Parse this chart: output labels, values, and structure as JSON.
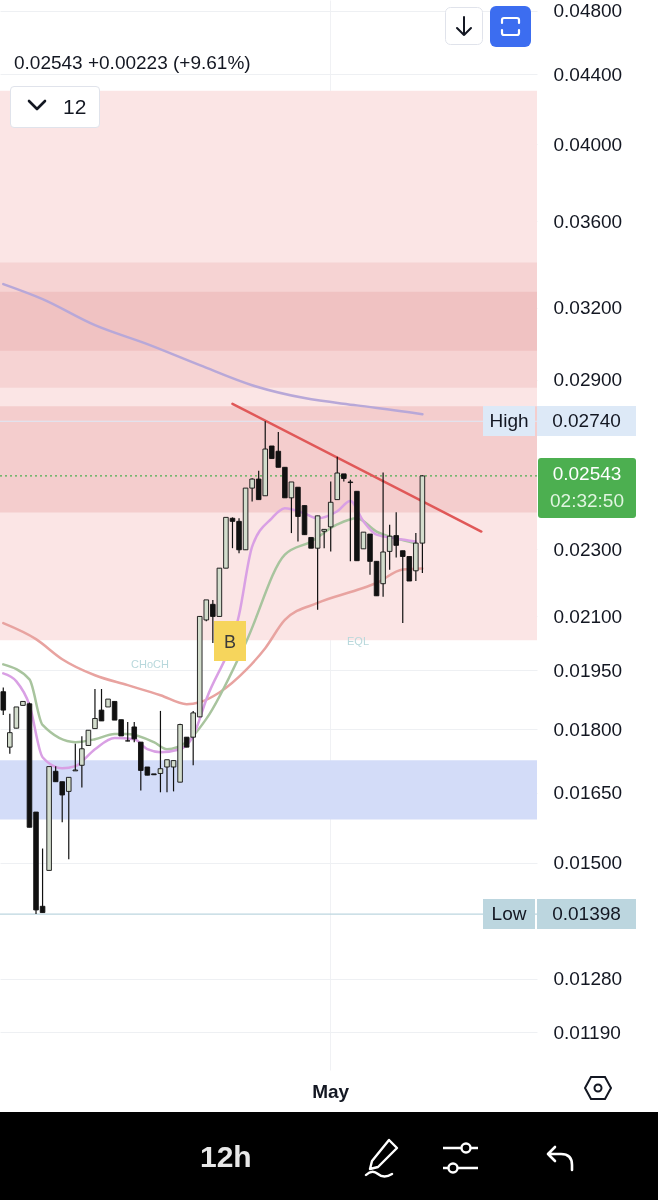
{
  "chart_data": {
    "type": "candlestick",
    "subtitle": "0.02543  +0.00223 (+9.61%)",
    "categories": [
      null,
      null,
      null,
      null,
      null,
      null,
      null,
      null,
      null,
      null,
      null,
      null,
      null,
      null,
      null,
      null,
      null,
      null,
      null,
      null,
      null,
      null,
      null,
      null,
      null,
      null,
      null,
      null,
      null,
      null,
      null,
      null,
      null,
      null,
      null,
      null,
      null,
      null,
      null,
      null,
      null,
      null,
      null,
      null,
      null,
      null,
      null,
      null,
      null,
      null,
      "May",
      null,
      null,
      null,
      null,
      null,
      null,
      null,
      null,
      null,
      null,
      null,
      null,
      null,
      null,
      null,
      null,
      null,
      null,
      null,
      null,
      null,
      null,
      null,
      null,
      null,
      null,
      null,
      null,
      null,
      null,
      null
    ],
    "ohlc": [
      [
        0.01894,
        0.01905,
        0.01835,
        0.01847
      ],
      [
        0.01756,
        0.01838,
        0.0174,
        0.01791
      ],
      [
        0.01802,
        0.01855,
        0.01802,
        0.01855
      ],
      [
        0.01859,
        0.01869,
        0.01859,
        0.01869
      ],
      [
        0.01863,
        0.01866,
        0.01574,
        0.01574
      ],
      [
        0.01607,
        0.01607,
        0.01398,
        0.01406
      ],
      [
        0.01413,
        0.01529,
        0.01401,
        0.01401
      ],
      [
        0.01484,
        0.0171,
        0.01484,
        0.0171
      ],
      [
        0.01699,
        0.01711,
        0.01675,
        0.01675
      ],
      [
        0.01675,
        0.01675,
        0.01585,
        0.01645
      ],
      [
        0.01653,
        0.01685,
        0.01507,
        0.01685
      ],
      [
        0.017,
        0.01764,
        0.017,
        0.01702
      ],
      [
        0.01713,
        0.01782,
        0.01662,
        0.01752
      ],
      [
        0.0176,
        0.01797,
        0.0176,
        0.01797
      ],
      [
        0.01801,
        0.01901,
        0.01801,
        0.01826
      ],
      [
        0.01847,
        0.01901,
        0.0182,
        0.0182
      ],
      [
        0.01855,
        0.01875,
        0.01855,
        0.01875
      ],
      [
        0.01869,
        0.01869,
        0.01822,
        0.01822
      ],
      [
        0.01823,
        0.01823,
        0.01783,
        0.01783
      ],
      [
        0.01771,
        0.01817,
        0.0177,
        0.01771
      ],
      [
        0.01805,
        0.01817,
        0.01768,
        0.01776
      ],
      [
        0.01768,
        0.01768,
        0.01655,
        0.01701
      ],
      [
        0.01709,
        0.01709,
        0.0169,
        0.0169
      ],
      [
        0.01693,
        0.01693,
        0.01691,
        0.01691
      ],
      [
        0.01694,
        0.01845,
        0.01651,
        0.01705
      ],
      [
        0.01709,
        0.01726,
        0.01651,
        0.01726
      ],
      [
        0.01709,
        0.01724,
        0.01653,
        0.01724
      ],
      [
        0.01674,
        0.01813,
        0.01674,
        0.01811
      ],
      [
        0.0178,
        0.0178,
        0.01756,
        0.01756
      ],
      [
        0.0178,
        0.01845,
        0.01713,
        0.0184
      ],
      [
        0.0183,
        0.021,
        0.0183,
        0.02099
      ],
      [
        0.02089,
        0.02147,
        0.02085,
        0.02147
      ],
      [
        0.02134,
        0.02147,
        0.02024,
        0.02099
      ],
      [
        0.02099,
        0.02242,
        0.02099,
        0.02242
      ],
      [
        0.02242,
        0.02403,
        0.02242,
        0.02403
      ],
      [
        0.024,
        0.02403,
        0.02304,
        0.0239
      ],
      [
        0.0239,
        0.024,
        0.02288,
        0.02299
      ],
      [
        0.02299,
        0.02501,
        0.02299,
        0.02501
      ],
      [
        0.02501,
        0.02535,
        0.02456,
        0.02532
      ],
      [
        0.02532,
        0.02561,
        0.02462,
        0.02462
      ],
      [
        0.02475,
        0.0274,
        0.02475,
        0.02638
      ],
      [
        0.02649,
        0.02649,
        0.02604,
        0.02604
      ],
      [
        0.0263,
        0.027,
        0.02573,
        0.02573
      ],
      [
        0.02573,
        0.02573,
        0.02468,
        0.02468
      ],
      [
        0.02468,
        0.02522,
        0.02352,
        0.02522
      ],
      [
        0.02504,
        0.02504,
        0.02325,
        0.02406
      ],
      [
        0.02442,
        0.02442,
        0.02347,
        0.02347
      ],
      [
        0.02338,
        0.02338,
        0.02304,
        0.02304
      ],
      [
        0.02304,
        0.02408,
        0.02118,
        0.02408
      ],
      [
        0.02358,
        0.02364,
        0.02304,
        0.02364
      ],
      [
        0.02372,
        0.02524,
        0.02294,
        0.02453
      ],
      [
        0.02462,
        0.0261,
        0.02462,
        0.02553
      ],
      [
        0.0255,
        0.0255,
        0.02524,
        0.02534
      ],
      [
        0.02522,
        0.0253,
        0.02263,
        0.0252
      ],
      [
        0.0249,
        0.0249,
        0.02265,
        0.02265
      ],
      [
        0.02302,
        0.02355,
        0.02302,
        0.02355
      ],
      [
        0.02349,
        0.02349,
        0.02222,
        0.02263
      ],
      [
        0.02263,
        0.02263,
        0.02159,
        0.02159
      ],
      [
        0.02195,
        0.02555,
        0.02156,
        0.02292
      ],
      [
        0.02294,
        0.02379,
        0.02237,
        0.02342
      ],
      [
        0.02344,
        0.0242,
        0.02275,
        0.02313
      ],
      [
        0.02296,
        0.02296,
        0.0208,
        0.02278
      ],
      [
        0.02278,
        0.02278,
        0.02203,
        0.02203
      ],
      [
        0.02234,
        0.02352,
        0.02203,
        0.0232
      ],
      [
        0.0232,
        0.02545,
        0.02227,
        0.02543
      ],
      null,
      null,
      null,
      null,
      null,
      null,
      null,
      null,
      null,
      null,
      null,
      null,
      null,
      null,
      null,
      null,
      null
    ],
    "series": [
      {
        "type": "line",
        "color": "#b8a8d8",
        "values": [
          0.03304,
          null,
          null,
          null,
          null,
          null,
          0.03237,
          null,
          null,
          null,
          null,
          null,
          null,
          null,
          0.03124,
          null,
          null,
          null,
          null,
          null,
          null,
          null,
          0.03044,
          null,
          null,
          null,
          null,
          null,
          null,
          null,
          0.02958,
          null,
          null,
          null,
          null,
          null,
          null,
          null,
          0.02878,
          null,
          null,
          null,
          null,
          null,
          null,
          null,
          0.02828,
          null,
          null,
          null,
          null,
          null,
          null,
          null,
          0.028,
          null,
          null,
          null,
          null,
          null,
          null,
          null,
          0.02774,
          null,
          0.02766,
          null,
          null,
          null,
          null,
          null,
          null,
          null,
          null,
          null,
          null,
          null,
          null,
          null,
          null,
          null,
          null,
          null
        ]
      },
      {
        "type": "line",
        "color": "#e8a3a0",
        "values": [
          0.0208,
          null,
          null,
          null,
          null,
          0.02035,
          null,
          null,
          null,
          0.0198,
          null,
          null,
          null,
          null,
          0.01937,
          null,
          null,
          null,
          null,
          0.01911,
          null,
          null,
          null,
          null,
          0.01885,
          null,
          null,
          null,
          0.01862,
          null,
          0.01867,
          null,
          null,
          0.01892,
          null,
          null,
          null,
          0.0195,
          null,
          null,
          0.0201,
          null,
          null,
          0.02089,
          null,
          null,
          null,
          null,
          0.02138,
          null,
          null,
          null,
          null,
          null,
          0.02176,
          null,
          null,
          0.02197,
          null,
          null,
          null,
          0.02238,
          null,
          null,
          0.02241,
          null,
          null,
          null,
          null,
          null,
          null,
          null,
          null,
          null,
          null,
          null,
          null,
          null,
          null,
          null,
          null,
          null
        ]
      },
      {
        "type": "line",
        "color": "#a8c49e",
        "values": [
          0.01966,
          null,
          null,
          null,
          0.01926,
          null,
          0.0181,
          null,
          null,
          null,
          null,
          0.01768,
          null,
          null,
          0.01775,
          null,
          null,
          0.01788,
          null,
          0.01788,
          null,
          null,
          null,
          0.01768,
          null,
          0.01751,
          null,
          null,
          0.01768,
          null,
          null,
          0.01825,
          null,
          null,
          null,
          null,
          null,
          0.02024,
          null,
          null,
          null,
          null,
          null,
          0.02284,
          null,
          null,
          null,
          0.02325,
          null,
          null,
          null,
          0.0238,
          null,
          null,
          0.024,
          null,
          null,
          0.02357,
          null,
          null,
          0.02335,
          null,
          null,
          0.02319,
          null,
          null,
          null,
          null,
          null,
          null,
          null,
          null,
          null,
          null,
          null,
          null,
          null,
          null,
          null,
          null,
          null,
          null
        ]
      },
      {
        "type": "line",
        "color": "#d9a0e4",
        "values": [
          0.01942,
          null,
          0.01921,
          null,
          0.0186,
          null,
          0.01732,
          null,
          null,
          0.01706,
          null,
          0.01711,
          null,
          null,
          0.01751,
          null,
          null,
          0.01778,
          null,
          null,
          0.01775,
          null,
          0.01751,
          null,
          0.01744,
          null,
          null,
          0.01751,
          null,
          0.01783,
          null,
          0.01874,
          null,
          null,
          null,
          null,
          0.02103,
          null,
          0.02309,
          null,
          null,
          0.024,
          null,
          0.02433,
          null,
          null,
          0.02416,
          null,
          0.024,
          null,
          null,
          0.02423,
          null,
          0.02457,
          null,
          0.0239,
          null,
          0.02347,
          null,
          null,
          0.02335,
          null,
          null,
          0.02325,
          null,
          null,
          null,
          null,
          null,
          null,
          null,
          null,
          null,
          null,
          null,
          null,
          null,
          null,
          null,
          null,
          null,
          null
        ]
      },
      {
        "type": "line",
        "color": "#e05858",
        "values": [
          null,
          null,
          null,
          null,
          null,
          null,
          null,
          null,
          null,
          null,
          null,
          null,
          null,
          null,
          null,
          null,
          null,
          null,
          null,
          null,
          null,
          null,
          null,
          null,
          null,
          null,
          null,
          null,
          null,
          null,
          null,
          null,
          null,
          null,
          null,
          0.02806,
          null,
          null,
          null,
          null,
          null,
          null,
          null,
          null,
          null,
          null,
          null,
          null,
          null,
          null,
          null,
          null,
          null,
          null,
          null,
          null,
          null,
          null,
          null,
          null,
          null,
          null,
          null,
          null,
          null,
          null,
          null,
          null,
          null,
          null,
          null,
          null,
          null,
          0.02357,
          null,
          null,
          null,
          null,
          null,
          null,
          null,
          null
        ]
      }
    ],
    "ylim": [
      0.0113,
      0.0487
    ],
    "log": true,
    "yticks": [
      {
        "value": 0.048,
        "label": "0.04800"
      },
      {
        "value": 0.044,
        "label": "0.04400"
      },
      {
        "value": 0.04,
        "label": "0.04000"
      },
      {
        "value": 0.036,
        "label": "0.03600"
      },
      {
        "value": 0.032,
        "label": "0.03200"
      },
      {
        "value": 0.029,
        "label": "0.02900"
      },
      {
        "value": 0.023,
        "label": "0.02300"
      },
      {
        "value": 0.021,
        "label": "0.02100"
      },
      {
        "value": 0.0195,
        "label": "0.01950"
      },
      {
        "value": 0.018,
        "label": "0.01800"
      },
      {
        "value": 0.0165,
        "label": "0.01650"
      },
      {
        "value": 0.015,
        "label": "0.01500"
      },
      {
        "value": 0.0128,
        "label": "0.01280"
      },
      {
        "value": 0.0119,
        "label": "0.01190"
      }
    ],
    "bands": [
      {
        "axis": "y",
        "from": 0.02032,
        "to": 0.04302,
        "color": "#fbe5e5"
      },
      {
        "axis": "y",
        "from": 0.02868,
        "to": 0.03403,
        "color": "#f6d3d3"
      },
      {
        "axis": "y",
        "from": 0.03017,
        "to": 0.0327,
        "color": "#f0c2c2"
      },
      {
        "axis": "y",
        "from": 0.02419,
        "to": 0.02797,
        "color": "#f4cdcd"
      },
      {
        "axis": "y",
        "from": 0.01591,
        "to": 0.01725,
        "color": "#d3dcf8"
      }
    ],
    "ref_lines": [
      {
        "axis": "y",
        "value": 0.0274,
        "label": "High",
        "color": "#dde9f7"
      },
      {
        "axis": "y",
        "value": 0.01398,
        "label": "Low",
        "color": "#bcd6df"
      },
      {
        "axis": "y",
        "value": 0.02543,
        "color": "#4caf50",
        "line_style": "dotted"
      }
    ],
    "annotations": [
      "12",
      "B",
      "CHoCH",
      "EQL",
      "12h",
      "02:32:50",
      "0.02740",
      "0.01398",
      "0.02543"
    ],
    "grid": true
  }
}
